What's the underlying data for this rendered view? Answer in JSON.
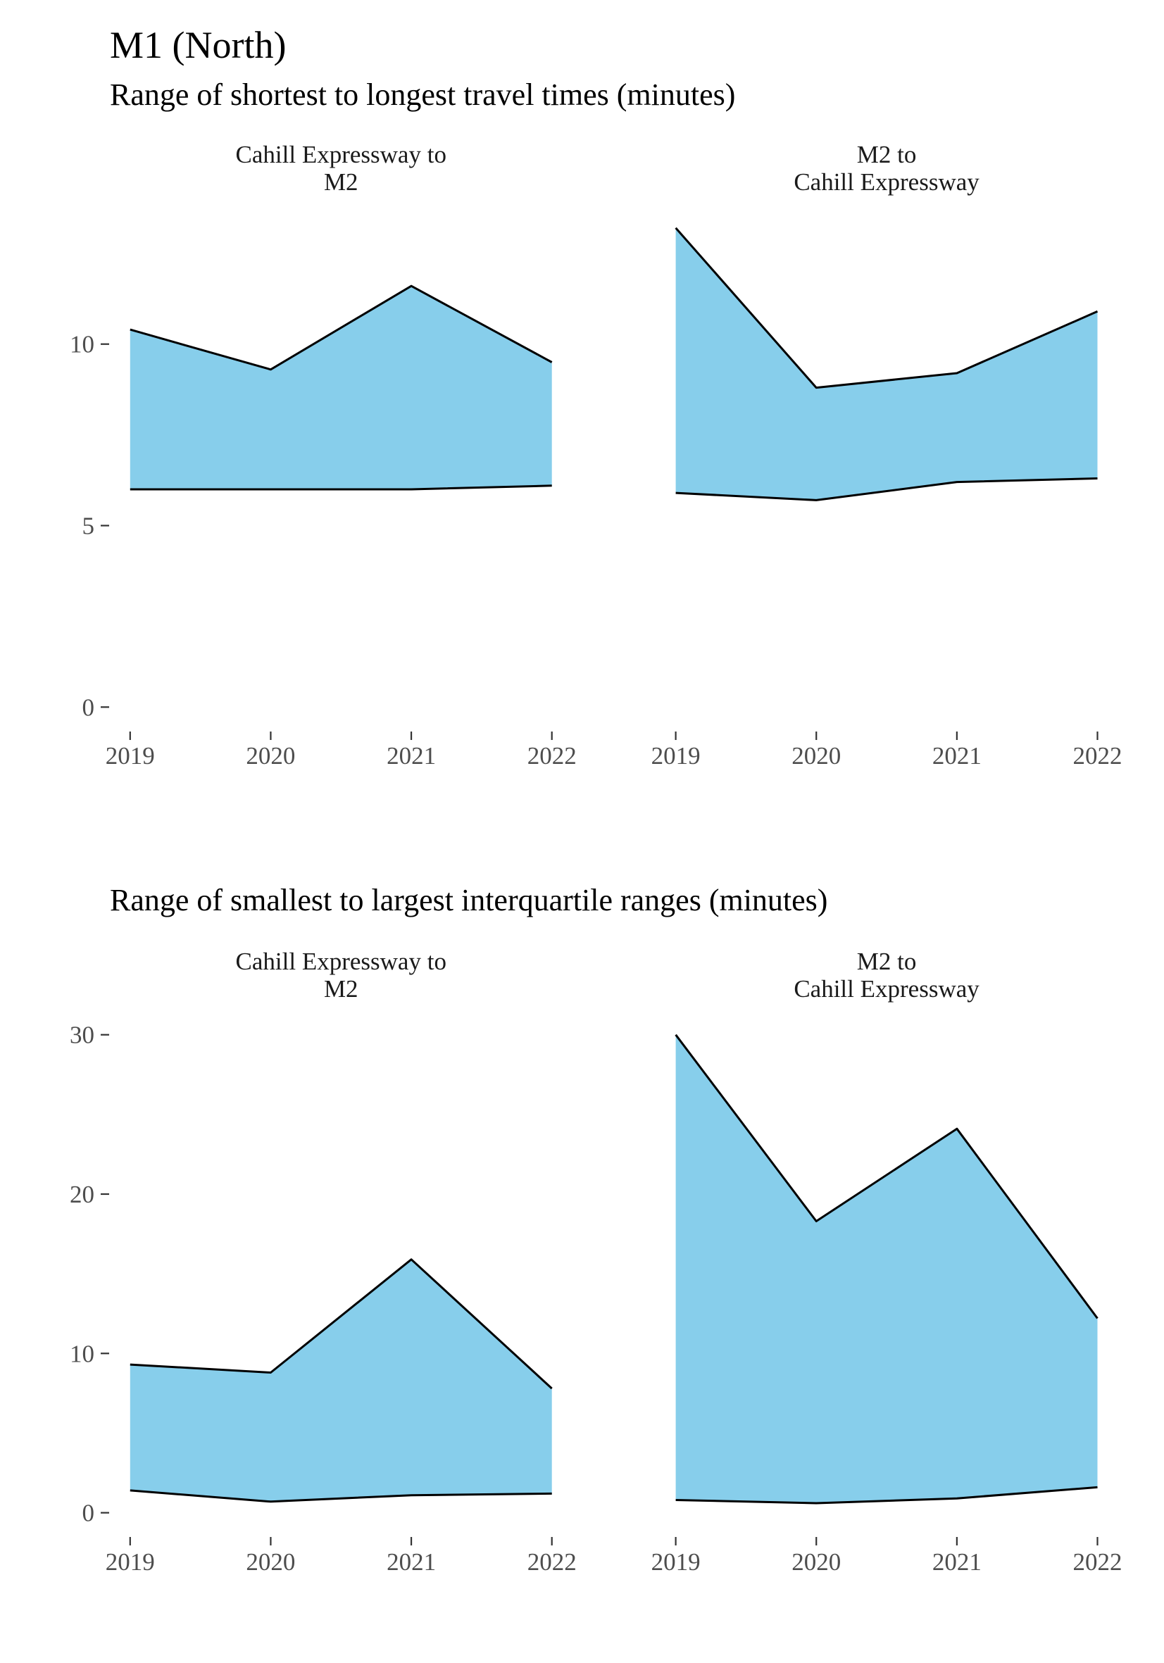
{
  "title": "M1 (North)",
  "chart_data": [
    {
      "type": "area",
      "title": "Range of shortest to longest travel times (minutes)",
      "x": [
        2019,
        2020,
        2021,
        2022
      ],
      "yticks": [
        0,
        5,
        10
      ],
      "ylim": [
        0,
        14
      ],
      "grid": false,
      "fill_color": "#87CEEB",
      "line_color": "#000000",
      "panels": [
        {
          "strip": [
            "Cahill Expressway to",
            "M2"
          ],
          "min": [
            6.0,
            6.0,
            6.0,
            6.1
          ],
          "max": [
            10.4,
            9.3,
            11.6,
            9.5
          ]
        },
        {
          "strip": [
            "M2 to",
            "Cahill Expressway"
          ],
          "min": [
            5.9,
            5.7,
            6.2,
            6.3
          ],
          "max": [
            13.2,
            8.8,
            9.2,
            10.9
          ]
        }
      ]
    },
    {
      "type": "area",
      "title": "Range of smallest to largest interquartile ranges (minutes)",
      "x": [
        2019,
        2020,
        2021,
        2022
      ],
      "yticks": [
        0,
        10,
        20,
        30
      ],
      "ylim": [
        0,
        30
      ],
      "grid": false,
      "fill_color": "#87CEEB",
      "line_color": "#000000",
      "panels": [
        {
          "strip": [
            "Cahill Expressway to",
            "M2"
          ],
          "min": [
            1.4,
            0.7,
            1.1,
            1.2
          ],
          "max": [
            9.3,
            8.8,
            15.9,
            7.8
          ]
        },
        {
          "strip": [
            "M2 to",
            "Cahill Expressway"
          ],
          "min": [
            0.8,
            0.6,
            0.9,
            1.6
          ],
          "max": [
            30.0,
            18.3,
            24.1,
            12.2
          ]
        }
      ]
    }
  ]
}
